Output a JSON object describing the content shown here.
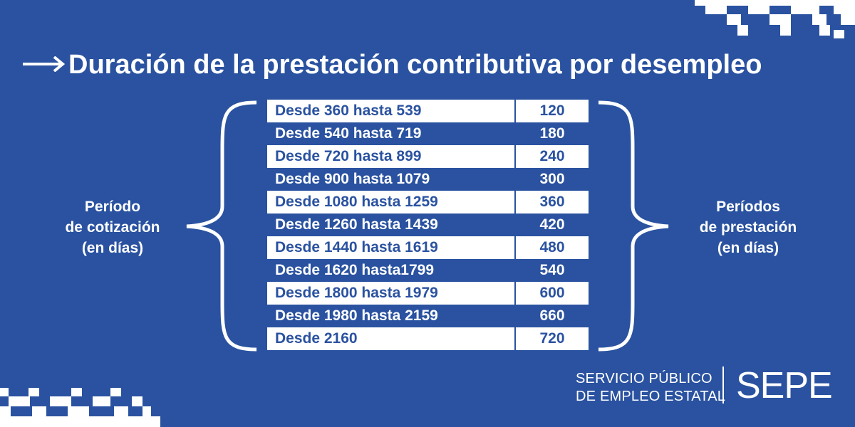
{
  "header": {
    "title": "Duración de la prestación contributiva por desempleo",
    "arrow_icon": "right-arrow-icon"
  },
  "left_label": {
    "line1": "Período",
    "line2": "de cotización",
    "line3": "(en días)"
  },
  "right_label": {
    "line1": "Períodos",
    "line2": "de prestación",
    "line3": "(en días)"
  },
  "table": {
    "rows": [
      {
        "range": "Desde 360 hasta 539",
        "days": "120"
      },
      {
        "range": "Desde 540 hasta 719",
        "days": "180"
      },
      {
        "range": "Desde 720 hasta 899",
        "days": "240"
      },
      {
        "range": "Desde 900 hasta 1079",
        "days": "300"
      },
      {
        "range": "Desde 1080 hasta 1259",
        "days": "360"
      },
      {
        "range": "Desde 1260 hasta 1439",
        "days": "420"
      },
      {
        "range": "Desde 1440 hasta 1619",
        "days": "480"
      },
      {
        "range": "Desde 1620 hasta1799",
        "days": "540"
      },
      {
        "range": "Desde 1800 hasta 1979",
        "days": "600"
      },
      {
        "range": "Desde 1980 hasta 2159",
        "days": "660"
      },
      {
        "range": "Desde 2160",
        "days": "720"
      }
    ]
  },
  "brand": {
    "line1": "SERVICIO PÚBLICO",
    "line2": "DE EMPLEO ESTATAL",
    "logo": "SEPE"
  },
  "colors": {
    "background": "#2a52a0",
    "foreground": "#ffffff"
  }
}
